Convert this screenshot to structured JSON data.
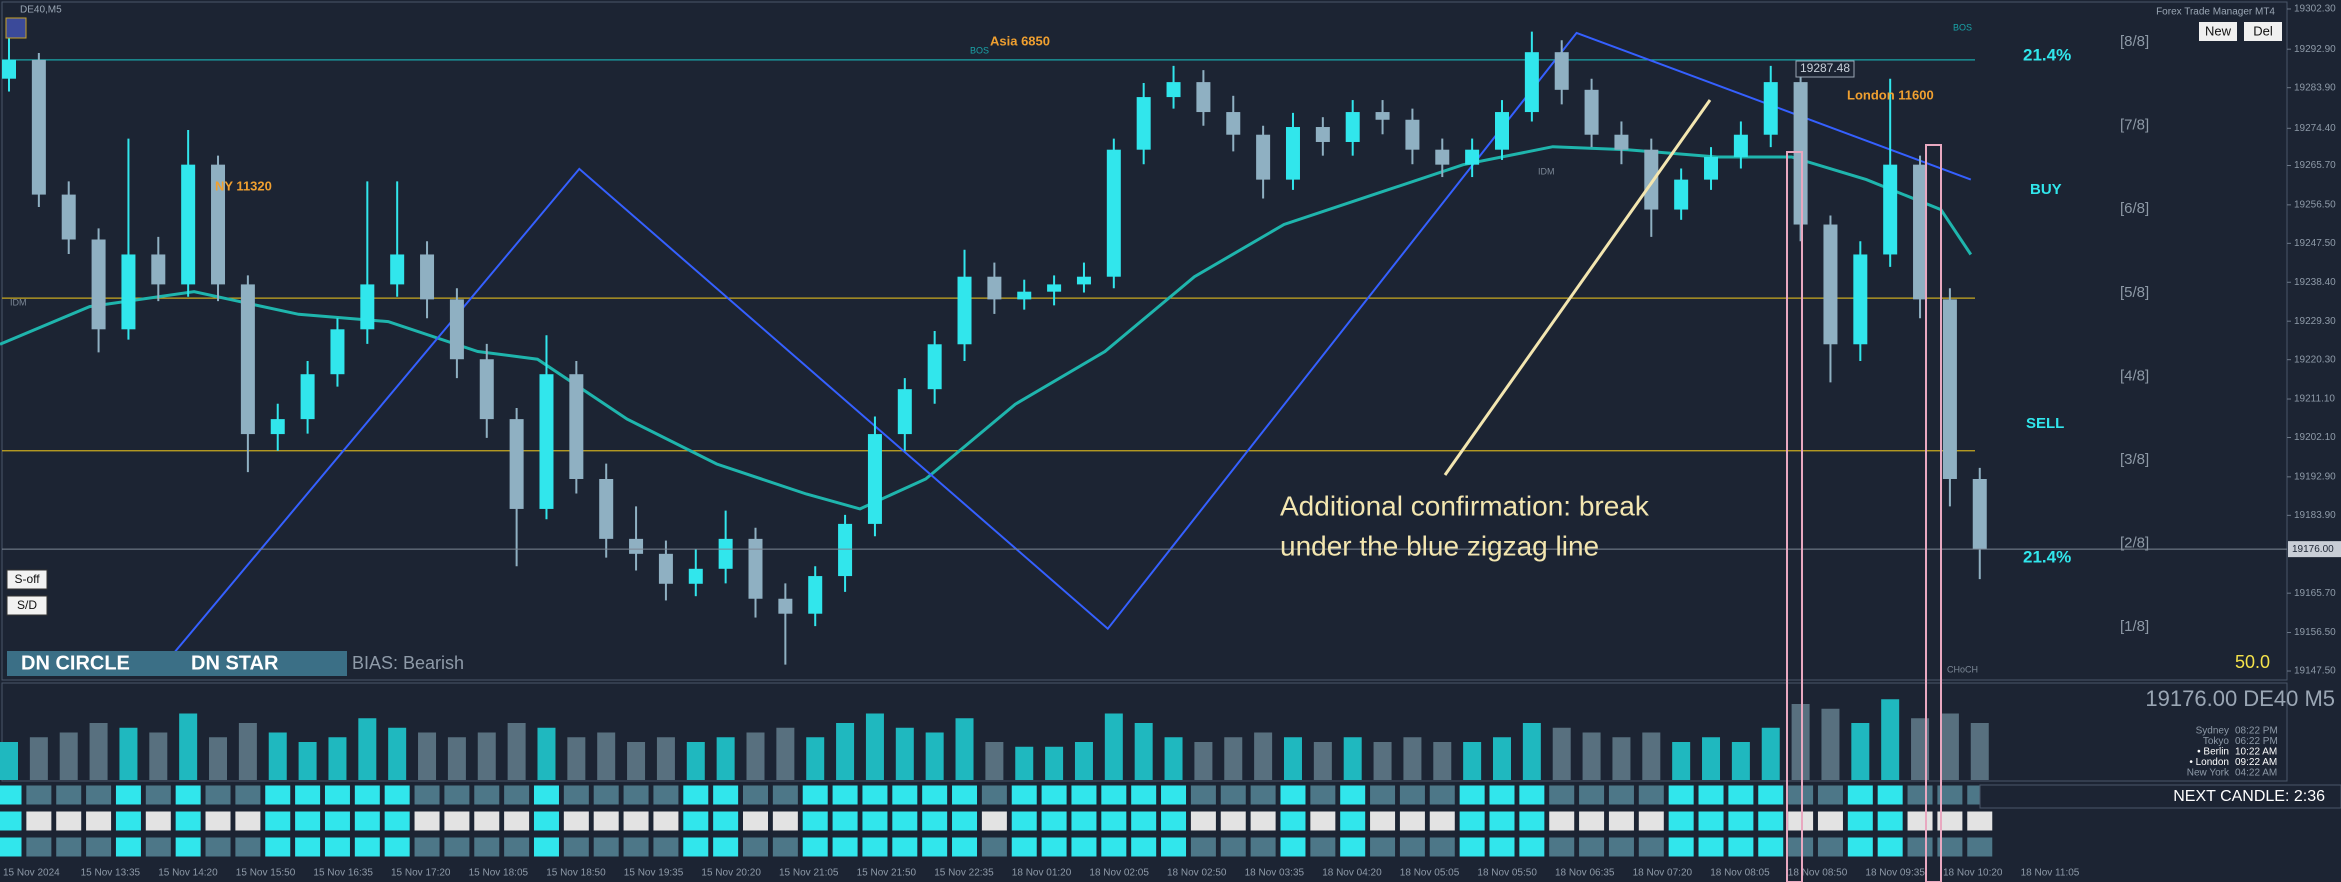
{
  "header": {
    "symbol": "DE40,M5",
    "platform": "Forex Trade Manager MT4",
    "buttons": [
      "New",
      "Del"
    ]
  },
  "chart_data": {
    "type": "candlestick",
    "ylim": [
      19145.4,
      19304.4
    ],
    "yticks": [
      {
        "value": 19302.3,
        "label": "19302.30"
      },
      {
        "value": 19292.9,
        "label": "19292.90"
      },
      {
        "value": 19283.9,
        "label": "19283.90"
      },
      {
        "value": 19274.4,
        "label": "19274.40"
      },
      {
        "value": 19265.7,
        "label": "19265.70"
      },
      {
        "value": 19256.5,
        "label": "19256.50"
      },
      {
        "value": 19247.5,
        "label": "19247.50"
      },
      {
        "value": 19238.4,
        "label": "19238.40"
      },
      {
        "value": 19229.3,
        "label": "19229.30"
      },
      {
        "value": 19220.3,
        "label": "19220.30"
      },
      {
        "value": 19211.1,
        "label": "19211.10"
      },
      {
        "value": 19202.1,
        "label": "19202.10"
      },
      {
        "value": 19192.9,
        "label": "19192.90"
      },
      {
        "value": 19183.9,
        "label": "19183.90"
      },
      {
        "value": 19165.7,
        "label": "19165.70"
      },
      {
        "value": 19156.5,
        "label": "19156.50"
      },
      {
        "value": 19147.5,
        "label": "19147.50"
      }
    ],
    "current_price": {
      "value": 19176,
      "label": "19176.00"
    },
    "up_color": "#31e6ec",
    "down_color": "#8fb0c2",
    "ohlc": [
      [
        19286.0,
        19300.0,
        19283.0,
        19290.4
      ],
      [
        19290.4,
        19292.0,
        19256.0,
        19258.9
      ],
      [
        19258.9,
        19262.0,
        19245.0,
        19248.4
      ],
      [
        19248.4,
        19251.0,
        19222.0,
        19227.4
      ],
      [
        19227.4,
        19272.0,
        19225.0,
        19244.9
      ],
      [
        19244.9,
        19249.0,
        19234.0,
        19237.9
      ],
      [
        19237.9,
        19274.0,
        19235.0,
        19265.9
      ],
      [
        19265.9,
        19268.0,
        19234.0,
        19237.9
      ],
      [
        19237.9,
        19240.0,
        19194.0,
        19202.9
      ],
      [
        19202.9,
        19210.0,
        19199.0,
        19206.4
      ],
      [
        19206.4,
        19220.0,
        19203.0,
        19216.9
      ],
      [
        19216.9,
        19230.0,
        19214.0,
        19227.4
      ],
      [
        19227.4,
        19262.0,
        19224.0,
        19237.9
      ],
      [
        19237.9,
        19262.0,
        19235.0,
        19244.9
      ],
      [
        19244.9,
        19248.0,
        19230.0,
        19234.4
      ],
      [
        19234.4,
        19237.0,
        19216.0,
        19220.4
      ],
      [
        19220.4,
        19224.0,
        19202.0,
        19206.4
      ],
      [
        19206.4,
        19209.0,
        19172.0,
        19185.4
      ],
      [
        19185.4,
        19226.0,
        19183.0,
        19216.9
      ],
      [
        19216.9,
        19220.0,
        19189.0,
        19192.4
      ],
      [
        19192.4,
        19196.0,
        19174.0,
        19178.4
      ],
      [
        19178.4,
        19186.0,
        19171.0,
        19174.9
      ],
      [
        19174.9,
        19178.0,
        19164.0,
        19167.9
      ],
      [
        19167.9,
        19176.0,
        19165.0,
        19171.4
      ],
      [
        19171.4,
        19185.0,
        19168.0,
        19178.4
      ],
      [
        19178.4,
        19181.0,
        19160.0,
        19164.4
      ],
      [
        19164.4,
        19168.0,
        19149.0,
        19160.9
      ],
      [
        19160.9,
        19172.0,
        19158.0,
        19169.7
      ],
      [
        19169.7,
        19184.0,
        19166.0,
        19181.9
      ],
      [
        19181.9,
        19207.0,
        19179.0,
        19202.9
      ],
      [
        19202.9,
        19216.0,
        19199.0,
        19213.4
      ],
      [
        19213.4,
        19227.0,
        19210.0,
        19223.9
      ],
      [
        19223.9,
        19246.0,
        19220.0,
        19239.7
      ],
      [
        19239.7,
        19243.0,
        19231.0,
        19234.4
      ],
      [
        19234.4,
        19239.0,
        19232.0,
        19236.2
      ],
      [
        19236.2,
        19240.0,
        19233.0,
        19237.9
      ],
      [
        19237.9,
        19243.0,
        19236.0,
        19239.7
      ],
      [
        19239.7,
        19272.0,
        19237.0,
        19269.4
      ],
      [
        19269.4,
        19285.0,
        19266.0,
        19281.7
      ],
      [
        19281.7,
        19289.0,
        19279.0,
        19285.2
      ],
      [
        19285.2,
        19288.0,
        19275.0,
        19278.2
      ],
      [
        19278.2,
        19282.0,
        19269.0,
        19272.9
      ],
      [
        19272.9,
        19275.0,
        19258.0,
        19262.4
      ],
      [
        19262.4,
        19278.0,
        19260.0,
        19274.7
      ],
      [
        19274.7,
        19277.0,
        19268.0,
        19271.2
      ],
      [
        19271.2,
        19281.0,
        19268.0,
        19278.2
      ],
      [
        19278.2,
        19281.0,
        19273.0,
        19276.4
      ],
      [
        19276.4,
        19279.0,
        19266.0,
        19269.4
      ],
      [
        19269.4,
        19272.0,
        19263.0,
        19265.9
      ],
      [
        19265.9,
        19272.0,
        19263.0,
        19269.4
      ],
      [
        19269.4,
        19281.0,
        19267.0,
        19278.2
      ],
      [
        19278.2,
        19297.0,
        19276.0,
        19292.2
      ],
      [
        19292.2,
        19295.0,
        19280.0,
        19283.4
      ],
      [
        19283.4,
        19286.0,
        19270.0,
        19272.9
      ],
      [
        19272.9,
        19276.0,
        19266.0,
        19269.4
      ],
      [
        19269.4,
        19272.0,
        19249.0,
        19255.4
      ],
      [
        19255.4,
        19265.0,
        19253.0,
        19262.4
      ],
      [
        19262.4,
        19270.0,
        19260.0,
        19267.7
      ],
      [
        19267.7,
        19276.0,
        19265.0,
        19272.9
      ],
      [
        19272.9,
        19289.0,
        19270.0,
        19285.2
      ],
      [
        19285.2,
        19288.0,
        19248.0,
        19251.9
      ],
      [
        19251.9,
        19254.0,
        19215.0,
        19223.9
      ],
      [
        19223.9,
        19248.0,
        19220.0,
        19244.9
      ],
      [
        19244.9,
        19286.0,
        19242.0,
        19265.9
      ],
      [
        19265.9,
        19268.0,
        19230.0,
        19234.4
      ],
      [
        19234.4,
        19237.0,
        19186.0,
        19192.4
      ],
      [
        19192.4,
        19195.0,
        19169.0,
        19176.0
      ]
    ],
    "volume_lim": [
      0,
      100
    ],
    "volume": [
      40,
      45,
      50,
      60,
      55,
      50,
      70,
      45,
      60,
      50,
      40,
      45,
      65,
      55,
      50,
      45,
      50,
      60,
      55,
      45,
      50,
      40,
      45,
      40,
      45,
      50,
      55,
      45,
      60,
      70,
      55,
      50,
      65,
      40,
      35,
      35,
      40,
      70,
      60,
      45,
      40,
      45,
      50,
      45,
      40,
      45,
      40,
      45,
      40,
      40,
      45,
      60,
      55,
      50,
      45,
      50,
      40,
      45,
      40,
      55,
      80,
      75,
      60,
      85,
      65,
      70,
      60
    ],
    "ma": {
      "color": "#1fb5ad",
      "x": [
        -0.3,
        2.7,
        6.2,
        9.7,
        12.7,
        15.7,
        17.7,
        20.7,
        23.7,
        26.7,
        28.5,
        30.7,
        33.7,
        36.7,
        39.7,
        42.7,
        45.7,
        48.7,
        51.7,
        54.2,
        57.2,
        59.7,
        62.2,
        64.7,
        65.7
      ],
      "y": [
        19223.9,
        19232.7,
        19236.2,
        19230.9,
        19229.2,
        19222.2,
        19220.4,
        19206.4,
        19195.9,
        19188.9,
        19185.4,
        19192.4,
        19209.9,
        19222.2,
        19239.7,
        19251.9,
        19258.9,
        19265.9,
        19270.1,
        19269.4,
        19267.7,
        19267.7,
        19262.4,
        19255.4,
        19244.9
      ]
    },
    "zigzag": {
      "color": "#3560ff",
      "x": [
        5.5,
        19.1,
        36.8,
        52.5,
        65.7
      ],
      "y": [
        19151.5,
        19264.9,
        19157.4,
        19296.7,
        19262.4
      ]
    },
    "hlines": [
      {
        "price": 19290.4,
        "color": "#1aa3a8"
      },
      {
        "price": 19234.7,
        "color": "#c8a820"
      },
      {
        "price": 19199.0,
        "color": "#c8a820"
      }
    ],
    "levels": [
      "[8/8]",
      "[7/8]",
      "[6/8]",
      "[5/8]",
      "[4/8]",
      "[3/8]",
      "[2/8]",
      "[1/8]"
    ],
    "time_labels": [
      "15 Nov 2024",
      "15 Nov 13:35",
      "15 Nov 14:20",
      "15 Nov 15:50",
      "15 Nov 16:35",
      "15 Nov 17:20",
      "15 Nov 18:05",
      "15 Nov 18:50",
      "15 Nov 19:35",
      "15 Nov 20:20",
      "15 Nov 21:05",
      "15 Nov 21:50",
      "15 Nov 22:35",
      "18 Nov 01:20",
      "18 Nov 02:05",
      "18 Nov 02:50",
      "18 Nov 03:35",
      "18 Nov 04:20",
      "18 Nov 05:05",
      "18 Nov 05:50",
      "18 Nov 06:35",
      "18 Nov 07:20",
      "18 Nov 08:05",
      "18 Nov 08:50",
      "18 Nov 09:35",
      "18 Nov 10:20",
      "18 Nov 11:05"
    ]
  },
  "annotations": {
    "asia": "Asia 6850",
    "ny": "NY 11320",
    "london": "London 11600",
    "bos_1": "BOS",
    "bos_2": "BOS",
    "idm_1": "IDM",
    "idm_2": "IDM",
    "choch": "CHoCH",
    "price_tag": "19287.48",
    "fib_top": "21.4%",
    "fib_bottom": "21.4%",
    "buy": "BUY",
    "sell": "SELL",
    "level_value": "50.0",
    "note": [
      "Additional confirmation: break",
      "under the blue zigzag line"
    ]
  },
  "signals": {
    "s_off": "S-off",
    "s_d": "S/D",
    "dn_circle": "DN CIRCLE",
    "dn_star": "DN STAR",
    "bias": "BIAS: Bearish"
  },
  "info": {
    "quote": "19176.00 DE40 M5",
    "clocks": [
      {
        "city": "Sydney",
        "time": "08:22 PM"
      },
      {
        "city": "Tokyo",
        "time": "06:22 PM"
      },
      {
        "city": "• Berlin",
        "time": "10:22 AM"
      },
      {
        "city": "• London",
        "time": "09:22 AM"
      },
      {
        "city": "New York",
        "time": "04:22 AM"
      }
    ],
    "next_candle": "NEXT CANDLE: 2:36"
  }
}
